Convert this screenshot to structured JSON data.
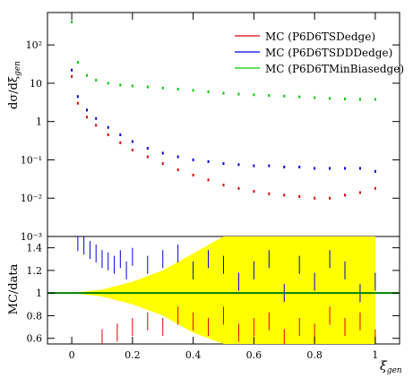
{
  "chart_data": [
    {
      "type": "scatter",
      "panel": "main",
      "ylabel": "dσ/dξgen",
      "yscale": "log",
      "ylim": [
        0.001,
        700
      ],
      "xlim": [
        -0.08,
        1.08
      ],
      "ytick_labels": [
        "10⁻³",
        "10⁻²",
        "10⁻¹",
        "1",
        "10",
        "10²"
      ],
      "ytick_values": [
        0.001,
        0.01,
        0.1,
        1,
        10,
        100
      ],
      "legend_position": "top-right",
      "series": [
        {
          "name": "MC (P6D6TSDedge)",
          "color": "#e00000",
          "x": [
            0.0,
            0.02,
            0.05,
            0.08,
            0.12,
            0.16,
            0.2,
            0.25,
            0.3,
            0.35,
            0.4,
            0.45,
            0.5,
            0.55,
            0.6,
            0.65,
            0.7,
            0.75,
            0.8,
            0.85,
            0.9,
            0.95,
            1.0
          ],
          "values": [
            15,
            3.0,
            1.3,
            0.8,
            0.45,
            0.28,
            0.18,
            0.12,
            0.08,
            0.055,
            0.04,
            0.03,
            0.022,
            0.018,
            0.015,
            0.013,
            0.012,
            0.011,
            0.01,
            0.01,
            0.012,
            0.014,
            0.018
          ]
        },
        {
          "name": "MC (P6D6TSDDDedge)",
          "color": "#0000e0",
          "x": [
            0.0,
            0.02,
            0.05,
            0.08,
            0.12,
            0.16,
            0.2,
            0.25,
            0.3,
            0.35,
            0.4,
            0.45,
            0.5,
            0.55,
            0.6,
            0.65,
            0.7,
            0.75,
            0.8,
            0.85,
            0.9,
            0.95,
            1.0
          ],
          "values": [
            22,
            4.5,
            2.0,
            1.2,
            0.7,
            0.45,
            0.3,
            0.2,
            0.15,
            0.12,
            0.1,
            0.09,
            0.08,
            0.075,
            0.07,
            0.07,
            0.065,
            0.065,
            0.06,
            0.06,
            0.06,
            0.06,
            0.05
          ]
        },
        {
          "name": "MC (P6D6TMinBiasedge)",
          "color": "#00cc00",
          "x": [
            0.0,
            0.02,
            0.05,
            0.08,
            0.12,
            0.16,
            0.2,
            0.25,
            0.3,
            0.35,
            0.4,
            0.45,
            0.5,
            0.55,
            0.6,
            0.65,
            0.7,
            0.75,
            0.8,
            0.85,
            0.9,
            0.95,
            1.0
          ],
          "values": [
            400,
            35,
            16,
            12,
            10,
            9,
            8.5,
            8,
            7.5,
            7,
            6.5,
            6,
            5.5,
            5.2,
            5,
            4.8,
            4.6,
            4.4,
            4.2,
            4.0,
            3.9,
            3.8,
            3.8
          ]
        }
      ]
    },
    {
      "type": "scatter",
      "panel": "ratio",
      "ylabel": "MC/data",
      "xlabel": "ξgen",
      "ylim": [
        0.55,
        1.5
      ],
      "xlim": [
        -0.08,
        1.08
      ],
      "xtick_labels": [
        "0",
        "0.2",
        "0.4",
        "0.6",
        "0.8",
        "1"
      ],
      "xtick_values": [
        0,
        0.2,
        0.4,
        0.6,
        0.8,
        1.0
      ],
      "ytick_labels": [
        "0.6",
        "0.8",
        "1",
        "1.2",
        "1.4"
      ],
      "ytick_values": [
        0.6,
        0.8,
        1.0,
        1.2,
        1.4
      ],
      "reference_line": 1.0,
      "reference_color": "#008000",
      "band_color": "#ffff00",
      "band": {
        "x": [
          0.0,
          0.1,
          0.2,
          0.3,
          0.4,
          0.5,
          0.6,
          0.7,
          0.8,
          0.9,
          1.0
        ],
        "half_width": [
          0.0,
          0.03,
          0.1,
          0.2,
          0.35,
          0.5,
          0.6,
          0.7,
          0.75,
          0.8,
          0.5
        ]
      },
      "series": [
        {
          "name": "MC (P6D6TSDDDedge)",
          "color": "#0000e0",
          "x": [
            0.02,
            0.04,
            0.06,
            0.08,
            0.1,
            0.12,
            0.14,
            0.16,
            0.18,
            0.2,
            0.25,
            0.3,
            0.35,
            0.4,
            0.45,
            0.5,
            0.55,
            0.6,
            0.65,
            0.7,
            0.75,
            0.8,
            0.85,
            0.9,
            0.95,
            1.0
          ],
          "values": [
            1.45,
            1.42,
            1.38,
            1.35,
            1.3,
            1.28,
            1.25,
            1.3,
            1.2,
            1.32,
            1.25,
            1.3,
            1.35,
            1.2,
            1.3,
            1.25,
            1.1,
            1.2,
            1.3,
            1.0,
            1.25,
            1.1,
            1.3,
            1.2,
            1.0,
            1.1
          ]
        },
        {
          "name": "MC (P6D6TSDedge)",
          "color": "#e00000",
          "x": [
            0.1,
            0.15,
            0.2,
            0.25,
            0.3,
            0.35,
            0.4,
            0.45,
            0.5,
            0.55,
            0.6,
            0.65,
            0.7,
            0.75,
            0.8,
            0.85,
            0.9,
            0.95,
            1.0
          ],
          "values": [
            0.6,
            0.65,
            0.7,
            0.75,
            0.7,
            0.8,
            0.75,
            0.7,
            0.8,
            0.65,
            0.7,
            0.75,
            0.6,
            0.7,
            0.65,
            0.8,
            0.7,
            0.75,
            0.6
          ]
        }
      ]
    }
  ],
  "legend": [
    {
      "label": "MC (P6D6TSDedge)",
      "color": "#e00000"
    },
    {
      "label": "MC (P6D6TSDDDedge)",
      "color": "#0000e0"
    },
    {
      "label": "MC (P6D6TMinBiasedge)",
      "color": "#00cc00"
    }
  ],
  "axis_text": {
    "main_ylabel_main": "dσ/dξ",
    "main_ylabel_sub": "gen",
    "ratio_ylabel": "MC/data",
    "xlabel_main": "ξ",
    "xlabel_sub": "gen"
  }
}
